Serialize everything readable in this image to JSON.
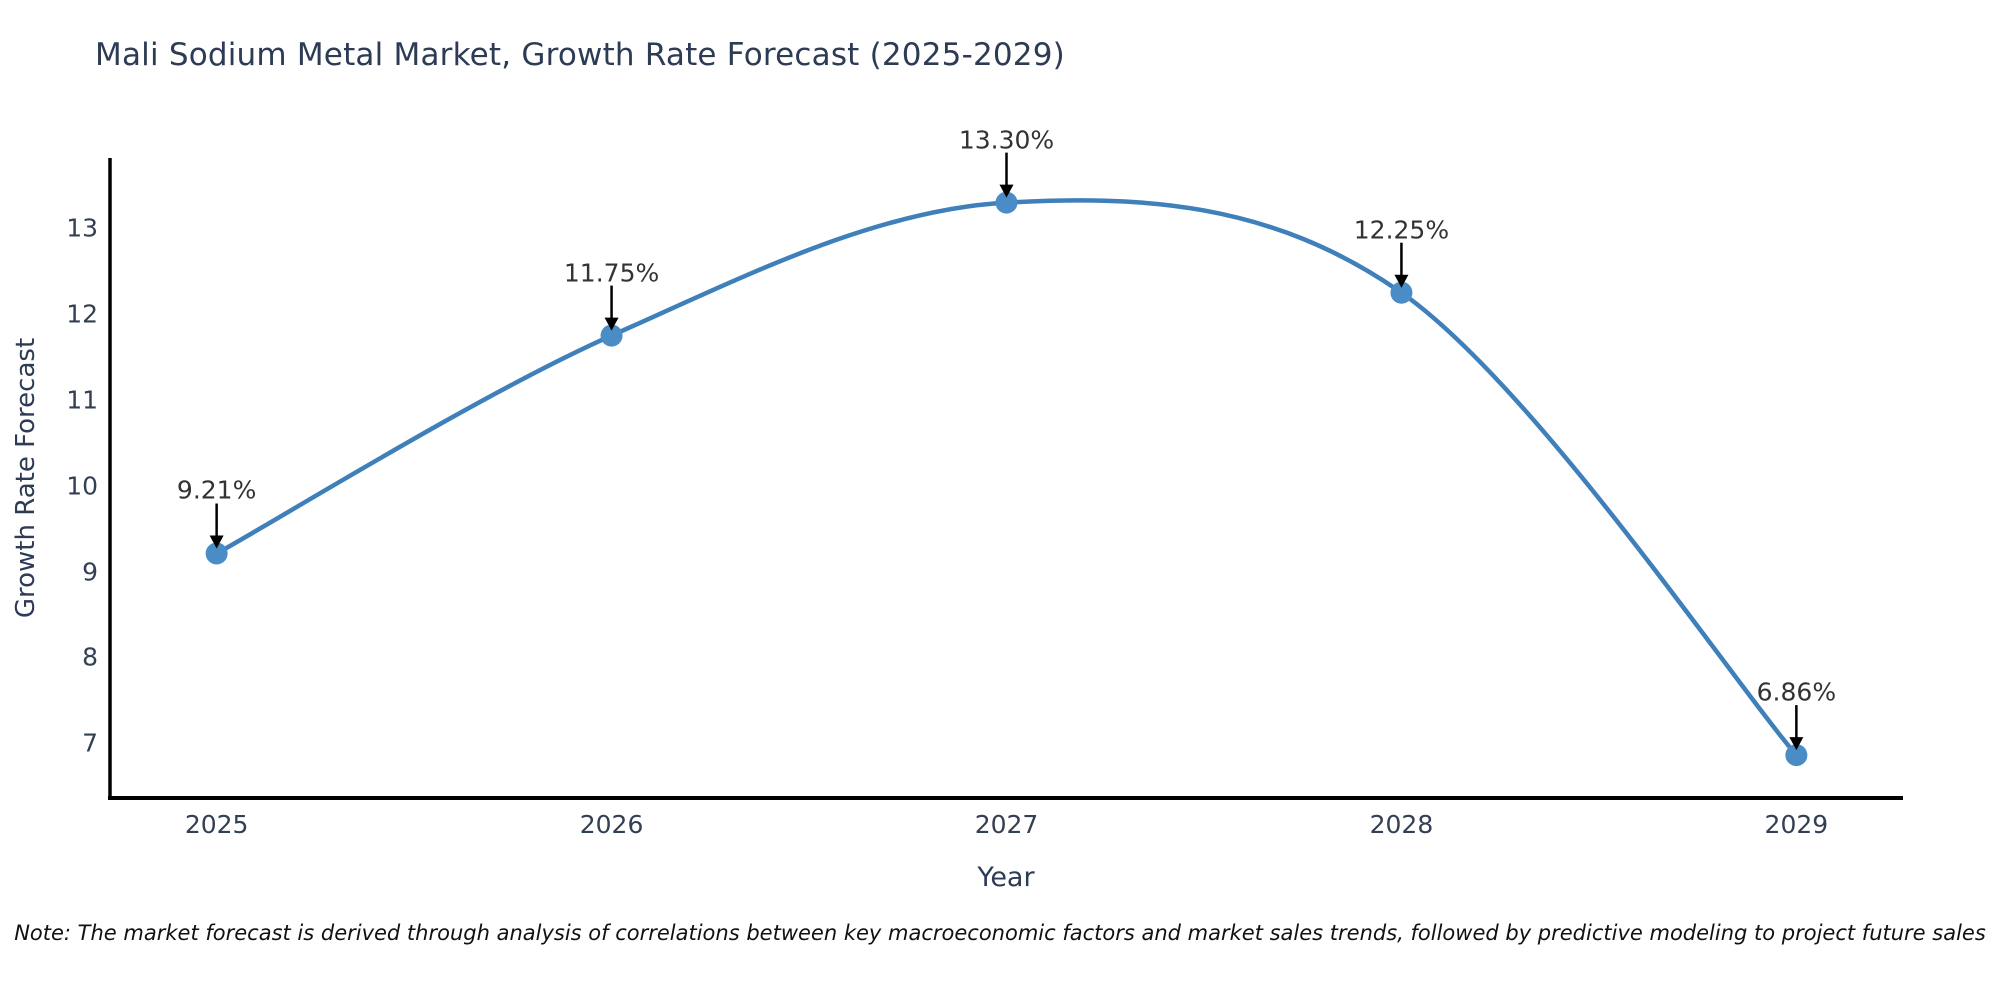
{
  "note": "Note: The market forecast is derived through analysis of correlations between key macroeconomic factors and market sales trends, followed by predictive modeling to project future sales",
  "chart_data": {
    "type": "line",
    "title": "Mali Sodium Metal Market, Growth Rate Forecast (2025-2029)",
    "xlabel": "Year",
    "ylabel": "Growth Rate Forecast",
    "x": [
      2025,
      2026,
      2027,
      2028,
      2029
    ],
    "values": [
      9.21,
      11.75,
      13.3,
      12.25,
      6.86
    ],
    "point_labels": [
      "9.21%",
      "11.75%",
      "13.30%",
      "12.25%",
      "6.86%"
    ],
    "xticklabels": [
      "2025",
      "2026",
      "2027",
      "2028",
      "2029"
    ],
    "yticks": [
      7,
      8,
      9,
      10,
      11,
      12,
      13
    ],
    "xlim": [
      2024.73,
      2029.27
    ],
    "ylim": [
      6.36,
      13.82
    ],
    "grid": false,
    "legend": "none",
    "smooth": true,
    "annotations_have_arrows": true,
    "colors": {
      "line": "#3f7fba",
      "marker": "#4a8cc6",
      "spine": "#000000",
      "title_text": "#2d3b55",
      "tick_text": "#333f52",
      "axis_label_text": "#2d3b55",
      "annotation_text": "#333333",
      "arrow": "#000000"
    }
  }
}
